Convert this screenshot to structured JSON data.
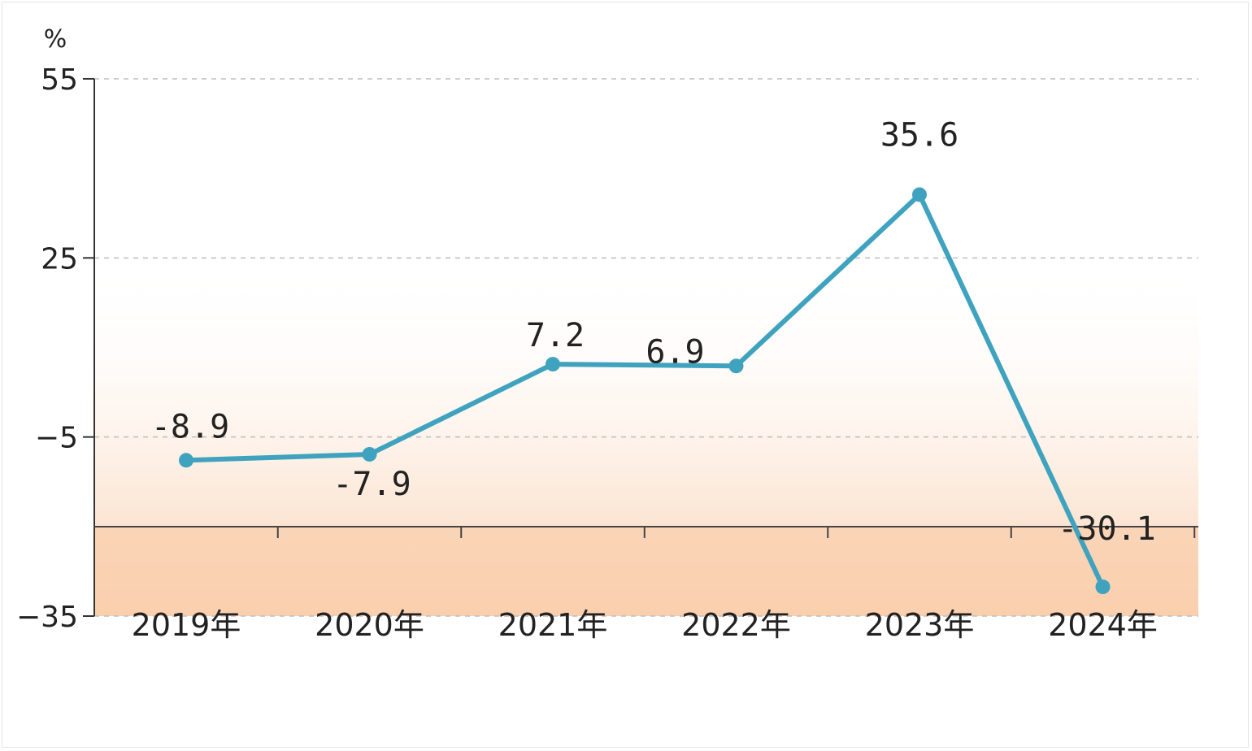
{
  "chart_data": {
    "type": "line",
    "unit_label": "%",
    "ylim": [
      -35,
      55
    ],
    "yticks": [
      55,
      25,
      -5,
      -35
    ],
    "categories": [
      "2019年",
      "2020年",
      "2021年",
      "2022年",
      "2023年",
      "2024年"
    ],
    "series": [
      {
        "values": [
          -8.9,
          -7.9,
          7.2,
          6.9,
          35.6,
          -30.1
        ],
        "labels": [
          "-8.9",
          "-7.9",
          "7.2",
          "6.9",
          "35.6",
          "-30.1"
        ],
        "color": "#3fa3bf"
      }
    ],
    "grid": "horizontal dashed",
    "background_gradient": [
      "#ffffff",
      "#f9cfae"
    ]
  }
}
